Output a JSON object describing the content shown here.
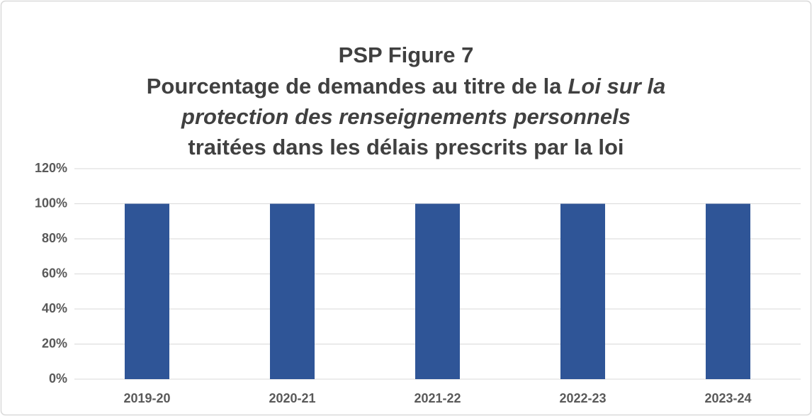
{
  "chart_data": {
    "type": "bar",
    "title": "PSP Figure 7",
    "subtitle": [
      {
        "text": "Pourcentage de demandes au titre de la",
        "italic": false
      },
      {
        "text": "Loi sur la",
        "italic": true
      },
      {
        "text": "protection des renseignements personnels",
        "italic": true
      },
      {
        "text": "traitées dans les délais prescrits par la loi",
        "italic": false
      }
    ],
    "categories": [
      "2019-20",
      "2020-21",
      "2021-22",
      "2022-23",
      "2023-24"
    ],
    "values": [
      100,
      100,
      100,
      100,
      100
    ],
    "color": "#2f5597",
    "ylim": [
      0,
      120
    ],
    "yticks": [
      {
        "value": 0,
        "label": "0%"
      },
      {
        "value": 20,
        "label": "20%"
      },
      {
        "value": 40,
        "label": "40%"
      },
      {
        "value": 60,
        "label": "60%"
      },
      {
        "value": 80,
        "label": "80%"
      },
      {
        "value": 100,
        "label": "100%"
      },
      {
        "value": 120,
        "label": "120%"
      }
    ],
    "grid": true
  }
}
